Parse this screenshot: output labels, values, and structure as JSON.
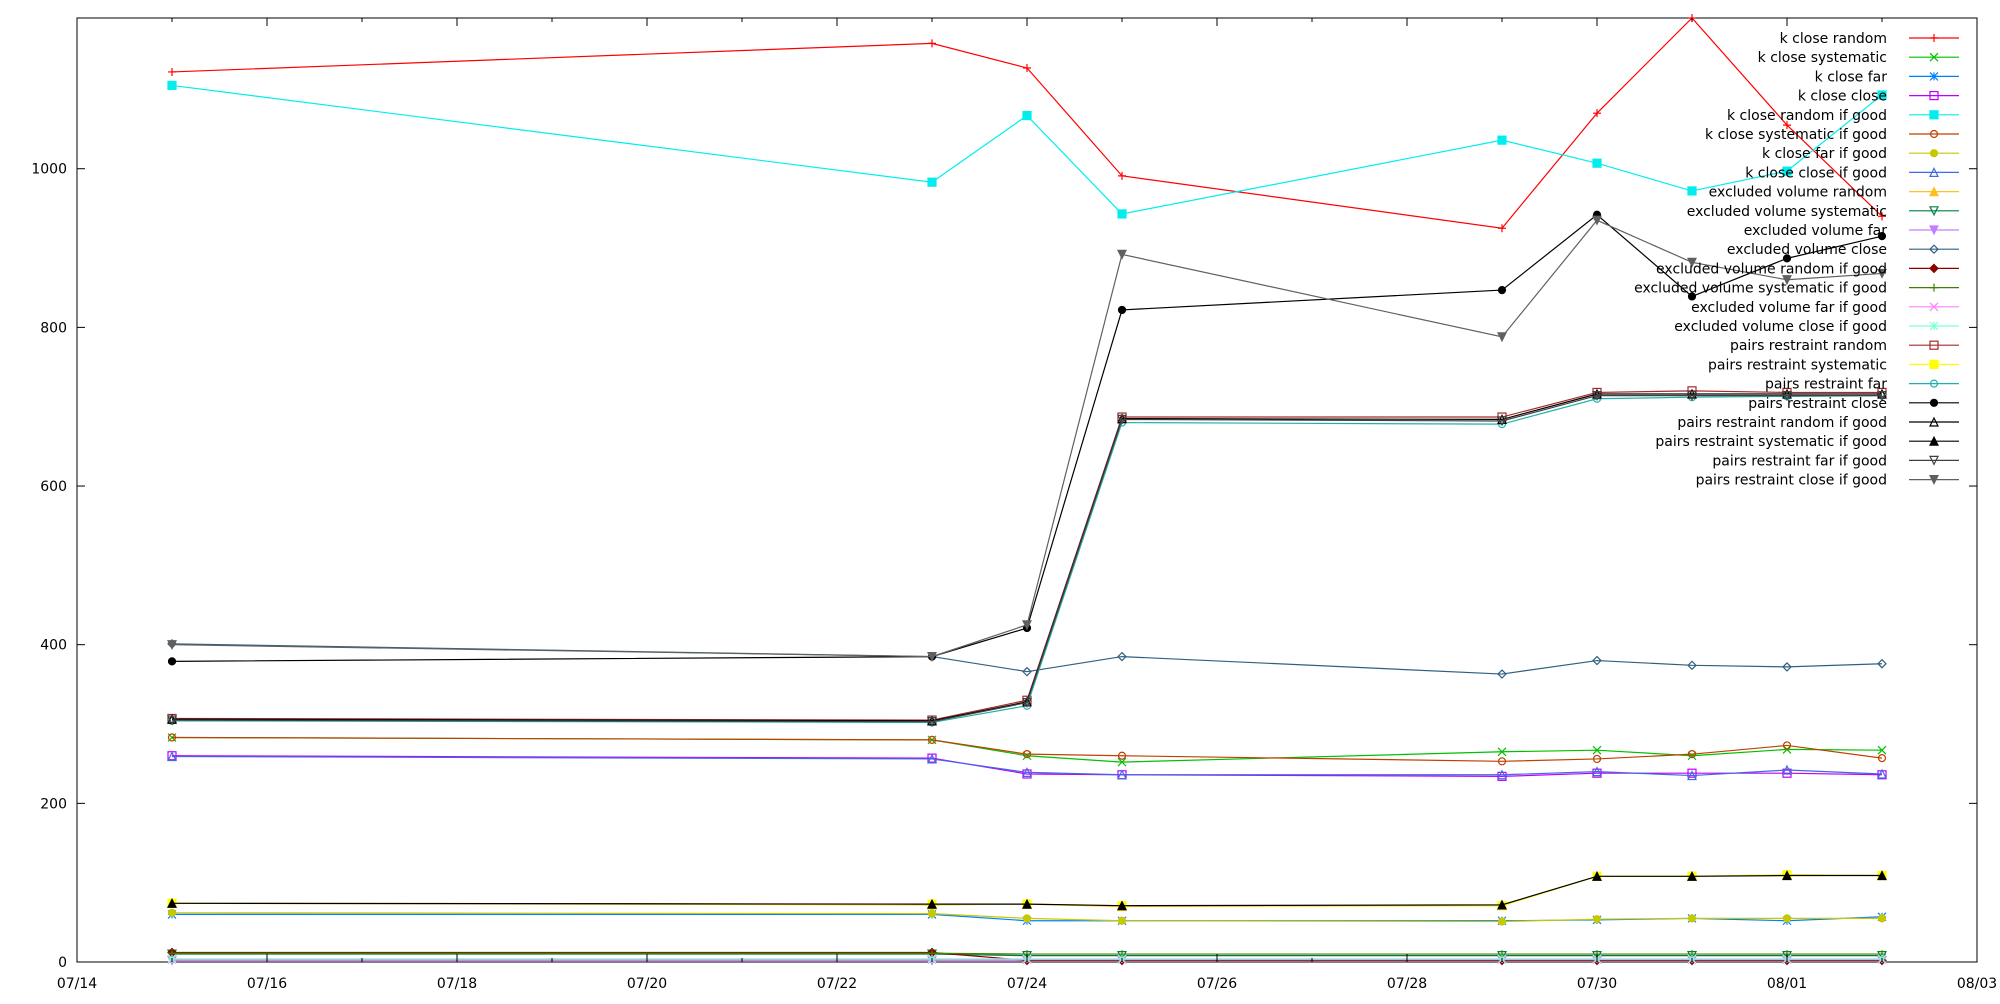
{
  "chart_data": {
    "type": "line",
    "title": "",
    "xlabel": "",
    "ylabel": "",
    "xlim": [
      0,
      20
    ],
    "ylim": [
      0,
      1190
    ],
    "x_ticks": [
      {
        "v": 0,
        "label": "07/14"
      },
      {
        "v": 2,
        "label": "07/16"
      },
      {
        "v": 4,
        "label": "07/18"
      },
      {
        "v": 6,
        "label": "07/20"
      },
      {
        "v": 8,
        "label": "07/22"
      },
      {
        "v": 10,
        "label": "07/24"
      },
      {
        "v": 12,
        "label": "07/26"
      },
      {
        "v": 14,
        "label": "07/28"
      },
      {
        "v": 16,
        "label": "07/30"
      },
      {
        "v": 18,
        "label": "08/01"
      },
      {
        "v": 20,
        "label": "08/03"
      }
    ],
    "y_ticks": [
      {
        "v": 0,
        "label": "0"
      },
      {
        "v": 200,
        "label": "200"
      },
      {
        "v": 400,
        "label": "400"
      },
      {
        "v": 600,
        "label": "600"
      },
      {
        "v": 800,
        "label": "800"
      },
      {
        "v": 1000,
        "label": "1000"
      }
    ],
    "grid": false,
    "legend_position": "top-right",
    "x": [
      1,
      9,
      10,
      11,
      15,
      16,
      17,
      18,
      19
    ],
    "series": [
      {
        "name": "k close random",
        "color": "#ff0000",
        "marker": "plus",
        "values": [
          1122,
          1158,
          1127,
          991,
          925,
          1070,
          1190,
          1055,
          940
        ]
      },
      {
        "name": "k close systematic",
        "color": "#00c000",
        "marker": "x",
        "values": [
          283,
          280,
          260,
          252,
          265,
          267,
          260,
          268,
          267
        ]
      },
      {
        "name": "k close far",
        "color": "#0080ff",
        "marker": "star",
        "values": [
          60,
          60,
          52,
          52,
          52,
          53,
          55,
          52,
          57
        ]
      },
      {
        "name": "k close close",
        "color": "#c000ff",
        "marker": "square",
        "values": [
          260,
          257,
          237,
          236,
          234,
          238,
          238,
          238,
          236
        ]
      },
      {
        "name": "k close random if good",
        "color": "#00eeee",
        "marker": "filled-square",
        "values": [
          1105,
          983,
          1067,
          943,
          1036,
          1007,
          972,
          997,
          1093
        ]
      },
      {
        "name": "k close systematic if good",
        "color": "#c04000",
        "marker": "circle",
        "values": [
          283,
          280,
          262,
          260,
          253,
          256,
          262,
          273,
          257
        ]
      },
      {
        "name": "k close far if good",
        "color": "#c8c800",
        "marker": "filled-circle",
        "values": [
          62,
          61,
          55,
          52,
          51,
          54,
          55,
          55,
          55
        ]
      },
      {
        "name": "k close close if good",
        "color": "#4169e1",
        "marker": "triangle",
        "values": [
          259,
          256,
          239,
          236,
          236,
          240,
          235,
          242,
          237
        ]
      },
      {
        "name": "excluded volume random",
        "color": "#ffc020",
        "marker": "filled-triangle",
        "values": [
          74,
          72,
          73,
          70,
          71,
          108,
          108,
          110,
          109
        ]
      },
      {
        "name": "excluded volume systematic",
        "color": "#008040",
        "marker": "triangle-down",
        "values": [
          10,
          10,
          8,
          8,
          8,
          8,
          8,
          8,
          8
        ]
      },
      {
        "name": "excluded volume far",
        "color": "#c080ff",
        "marker": "filled-triangle-down",
        "values": [
          2,
          2,
          2,
          2,
          2,
          2,
          2,
          2,
          2
        ]
      },
      {
        "name": "excluded volume close",
        "color": "#306080",
        "marker": "diamond",
        "values": [
          401,
          385,
          366,
          385,
          363,
          380,
          374,
          372,
          376
        ]
      },
      {
        "name": "excluded volume random if good",
        "color": "#8b0000",
        "marker": "filled-diamond",
        "values": [
          12,
          12,
          2,
          2,
          2,
          2,
          2,
          2,
          2
        ]
      },
      {
        "name": "excluded volume systematic if good",
        "color": "#408000",
        "marker": "plus",
        "values": [
          11,
          11,
          10,
          10,
          10,
          10,
          10,
          10,
          10
        ]
      },
      {
        "name": "excluded volume far if good",
        "color": "#ff80ff",
        "marker": "x",
        "values": [
          3,
          3,
          3,
          3,
          3,
          3,
          3,
          3,
          3
        ]
      },
      {
        "name": "excluded volume close if good",
        "color": "#7fffd4",
        "marker": "star",
        "values": [
          4,
          4,
          4,
          4,
          4,
          4,
          4,
          4,
          4
        ]
      },
      {
        "name": "pairs restraint random",
        "color": "#a52a2a",
        "marker": "square",
        "values": [
          307,
          305,
          330,
          687,
          687,
          718,
          720,
          718,
          718
        ]
      },
      {
        "name": "pairs restraint systematic",
        "color": "#ffff00",
        "marker": "filled-square",
        "values": [
          74,
          73,
          73,
          71,
          71,
          108,
          108,
          110,
          109
        ]
      },
      {
        "name": "pairs restraint far",
        "color": "#20b2aa",
        "marker": "circle",
        "values": [
          304,
          302,
          323,
          680,
          678,
          710,
          712,
          713,
          714
        ]
      },
      {
        "name": "pairs restraint close",
        "color": "#000000",
        "marker": "filled-circle",
        "values": [
          379,
          385,
          421,
          822,
          847,
          942,
          839,
          887,
          915
        ]
      },
      {
        "name": "pairs restraint random if good",
        "color": "#000000",
        "marker": "triangle",
        "values": [
          306,
          304,
          328,
          685,
          684,
          716,
          716,
          716,
          716
        ]
      },
      {
        "name": "pairs restraint systematic if good",
        "color": "#000000",
        "marker": "filled-triangle",
        "values": [
          74,
          73,
          73,
          71,
          72,
          108,
          108,
          109,
          109
        ]
      },
      {
        "name": "pairs restraint far if good",
        "color": "#404040",
        "marker": "triangle-down",
        "values": [
          305,
          303,
          327,
          684,
          682,
          714,
          714,
          714,
          714
        ]
      },
      {
        "name": "pairs restraint close if good",
        "color": "#606060",
        "marker": "filled-triangle-down",
        "values": [
          400,
          385,
          425,
          892,
          788,
          935,
          882,
          860,
          868
        ]
      }
    ]
  }
}
